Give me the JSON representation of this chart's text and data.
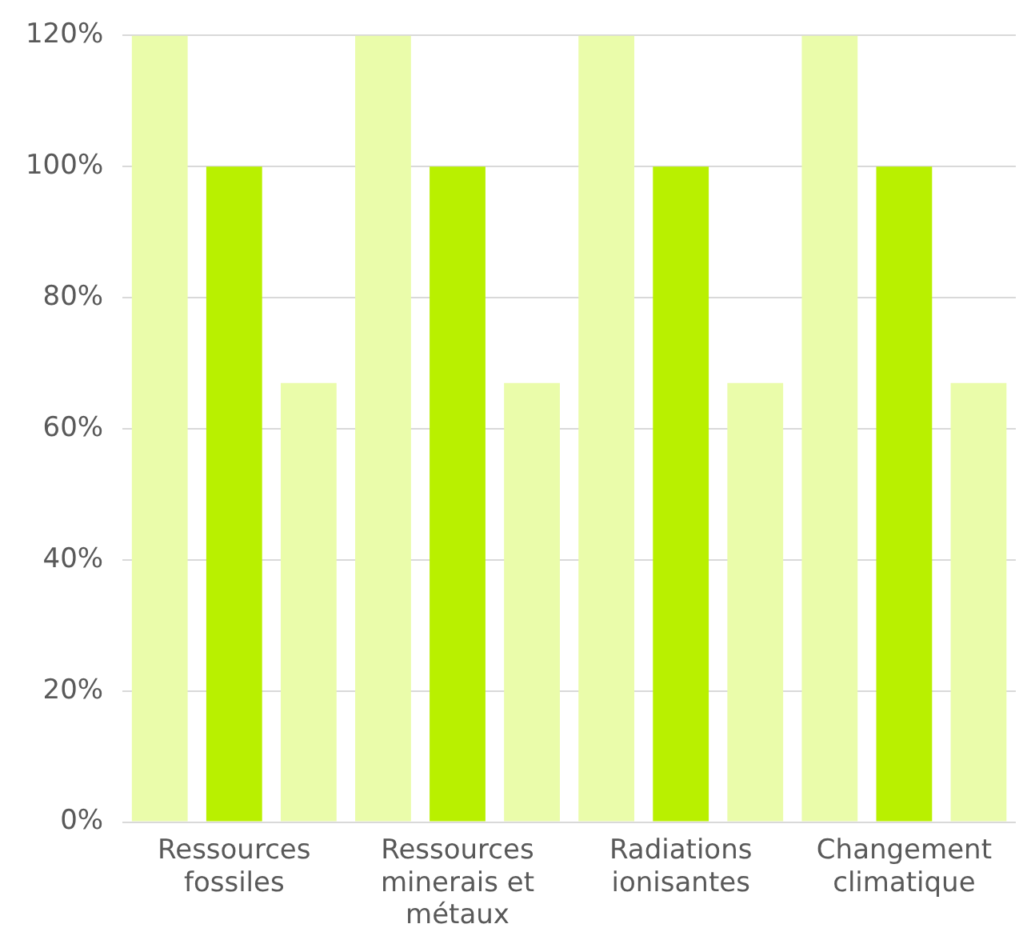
{
  "chart_data": {
    "type": "bar",
    "categories": [
      "Ressources fossiles",
      "Ressources minerais et métaux",
      "Radiations ionisantes",
      "Changement climatique"
    ],
    "series": [
      {
        "color": "#eafcaa",
        "values": [
          120,
          120,
          120,
          120
        ]
      },
      {
        "color": "#b9f000",
        "values": [
          100,
          100,
          100,
          100
        ]
      },
      {
        "color": "#eafcaa",
        "values": [
          67,
          67,
          67,
          67
        ]
      }
    ],
    "ylim": [
      0,
      120
    ],
    "yticks": [
      {
        "value": 0,
        "label": "0%"
      },
      {
        "value": 20,
        "label": "20%"
      },
      {
        "value": 40,
        "label": "40%"
      },
      {
        "value": 60,
        "label": "60%"
      },
      {
        "value": 80,
        "label": "80%"
      },
      {
        "value": 100,
        "label": "100%"
      },
      {
        "value": 120,
        "label": "120%"
      }
    ],
    "grid": "y",
    "legend": false
  }
}
